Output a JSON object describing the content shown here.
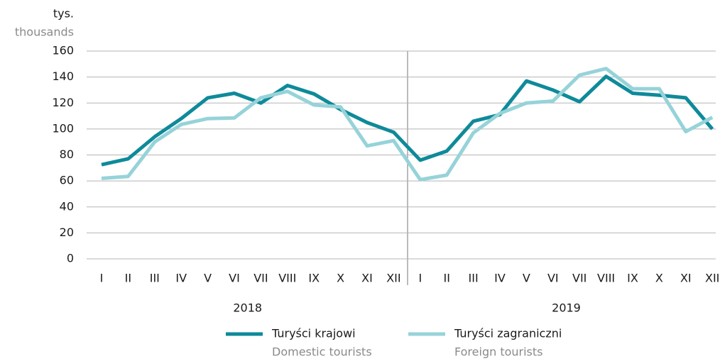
{
  "chart_data": {
    "type": "line",
    "y_label": "tys.",
    "y_label_en": "thousands",
    "categories": [
      "I",
      "II",
      "III",
      "IV",
      "V",
      "VI",
      "VII",
      "VIII",
      "IX",
      "X",
      "XI",
      "XII",
      "I",
      "II",
      "III",
      "IV",
      "V",
      "VI",
      "VII",
      "VIII",
      "IX",
      "X",
      "XI",
      "XII"
    ],
    "group_labels": [
      "2018",
      "2019"
    ],
    "series": [
      {
        "name": "Turyści krajowi",
        "name_en": "Domestic tourists",
        "color": "#0e8a9a",
        "values": [
          72.5,
          77,
          94,
          108,
          124,
          127.5,
          120,
          133.5,
          127,
          115,
          105,
          97.5,
          76,
          83,
          106,
          111,
          137,
          130,
          121,
          140.5,
          127.5,
          126,
          124,
          100
        ]
      },
      {
        "name": "Turyści zagraniczni",
        "name_en": "Foreign tourists",
        "color": "#96d3d9",
        "values": [
          62,
          63.5,
          90,
          103.5,
          108,
          108.5,
          124,
          129,
          118.5,
          117,
          87,
          91,
          61,
          64.5,
          97,
          112,
          120,
          121.5,
          141.5,
          146.5,
          131,
          131,
          98,
          109
        ]
      }
    ],
    "ylim": [
      0,
      160
    ],
    "yticks": [
      0,
      20,
      40,
      60,
      80,
      100,
      120,
      140,
      160
    ],
    "grid": true
  }
}
